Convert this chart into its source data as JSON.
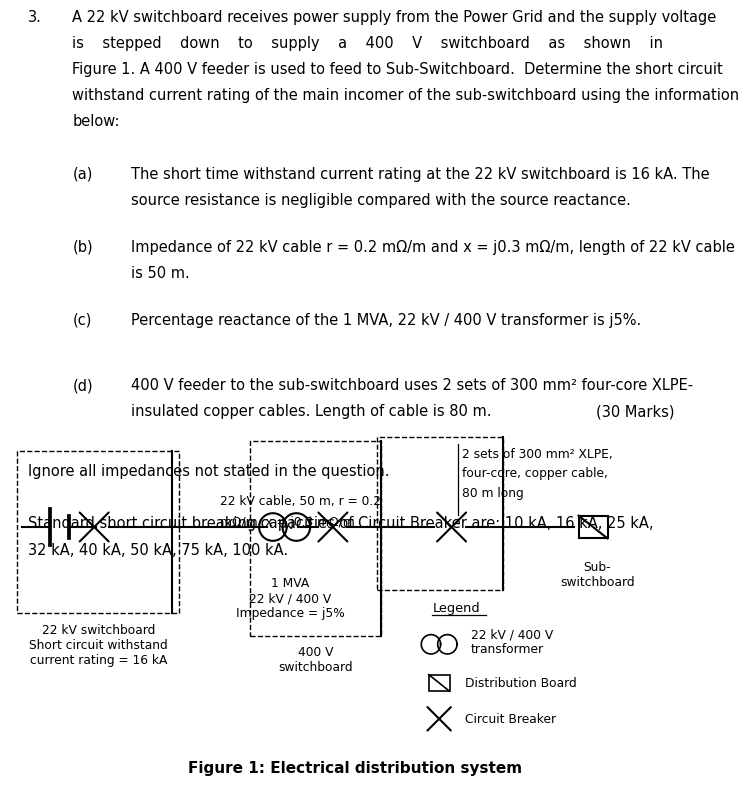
{
  "title": "Figure 1: Electrical distribution system",
  "background_color": "#ffffff",
  "text_color": "#000000",
  "question_number": "3.",
  "q_line1": "A 22 kV switchboard receives power supply from the Power Grid and the supply voltage",
  "q_line2": "is    stepped    down    to    supply    a    400    V    switchboard    as    shown    in",
  "q_line3": "Figure 1. A 400 V feeder is used to feed to Sub-Switchboard.  Determine the short circuit",
  "q_line4": "withstand current rating of the main incomer of the sub-switchboard using the information",
  "q_line5": "below:",
  "item_a_label": "(a)",
  "item_a_line1": "The short time withstand current rating at the 22 kV switchboard is 16 kA. The",
  "item_a_line2": "source resistance is negligible compared with the source reactance.",
  "item_b_label": "(b)",
  "item_b_line1": "Impedance of 22 kV cable r = 0.2 mΩ/m and x = j0.3 mΩ/m, length of 22 kV cable",
  "item_b_line2": "is 50 m.",
  "item_c_label": "(c)",
  "item_c_text": "Percentage reactance of the 1 MVA, 22 kV / 400 V transformer is j5%.",
  "item_d_label": "(d)",
  "item_d_line1": "400 V feeder to the sub-switchboard uses 2 sets of 300 mm² four-core XLPE-",
  "item_d_line2": "insulated copper cables. Length of cable is 80 m.",
  "marks_text": "(30 Marks)",
  "ignore_text": "Ignore all impedances not stated in the question.",
  "standard_line1": "Standard short circuit breaking capacities of Circuit Breaker are: 10 kA, 16 kA, 25 kA,",
  "standard_line2": "32 kA, 40 kA, 50 kA, 75 kA, 100 kA.",
  "fig_caption": "Figure 1: Electrical distribution system",
  "label_22kv_cable": "22 kV cable, 50 m, r = 0.2",
  "label_22kv_cable2": "mΩ/m, x = j0.3 mΩ/m",
  "label_transformer": "1 MVA\n22 kV / 400 V\nImpedance = j5%",
  "label_400v": "400 V\nswitchboard",
  "label_22kv_board": "22 kV switchboard\nShort circuit withstand\ncurrent rating = 16 kA",
  "label_cable_note1": "2 sets of 300 mm² XLPE,",
  "label_cable_note2": "four-core, copper cable,",
  "label_cable_note3": "80 m long",
  "label_sub": "Sub-\nswitchboard",
  "legend_title": "Legend",
  "legend_transformer": "22 kV / 400 V\ntransformer",
  "legend_distboard": "Distribution Board",
  "legend_cb": "Circuit Breaker"
}
